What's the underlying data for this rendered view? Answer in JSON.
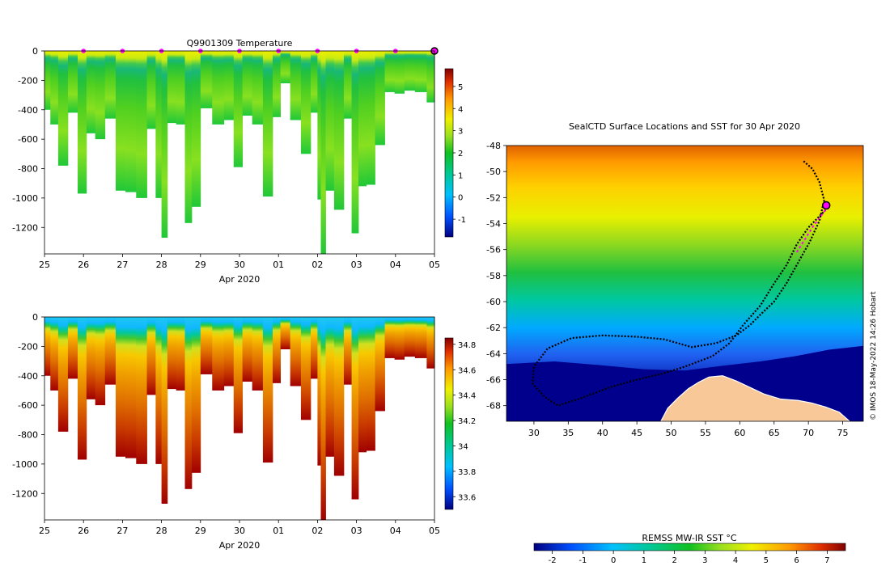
{
  "chart_data": [
    {
      "id": "temperature",
      "type": "heatmap",
      "title": "Q9901309  Temperature",
      "xlabel": "Apr 2020",
      "ylabel": "",
      "x_tick_labels": [
        "25",
        "26",
        "27",
        "28",
        "29",
        "30",
        "01",
        "02",
        "03",
        "04",
        "05"
      ],
      "y_tick_values": [
        0,
        -200,
        -400,
        -600,
        -800,
        -1000,
        -1200
      ],
      "ylim": [
        -1380,
        0
      ],
      "xlim": [
        25,
        35
      ],
      "colorbar_ticks": [
        5,
        4,
        3,
        2,
        1,
        0,
        -1
      ],
      "colorbar_range": [
        -1.8,
        5.8
      ],
      "profile_markers_day": [
        26,
        27,
        28,
        29,
        30,
        31,
        32,
        33,
        34
      ],
      "current_position_day": 35,
      "casts": [
        {
          "x": 25.05,
          "depth": 400
        },
        {
          "x": 25.25,
          "depth": 500
        },
        {
          "x": 25.45,
          "depth": 780
        },
        {
          "x": 25.75,
          "depth": 420
        },
        {
          "x": 25.95,
          "depth": 970
        },
        {
          "x": 26.2,
          "depth": 560
        },
        {
          "x": 26.4,
          "depth": 600
        },
        {
          "x": 26.7,
          "depth": 460
        },
        {
          "x": 26.95,
          "depth": 950
        },
        {
          "x": 27.2,
          "depth": 960
        },
        {
          "x": 27.5,
          "depth": 1000
        },
        {
          "x": 27.75,
          "depth": 530
        },
        {
          "x": 27.95,
          "depth": 1000
        },
        {
          "x": 28.05,
          "depth": 1270
        },
        {
          "x": 28.25,
          "depth": 490
        },
        {
          "x": 28.5,
          "depth": 500
        },
        {
          "x": 28.7,
          "depth": 1170
        },
        {
          "x": 28.85,
          "depth": 1060
        },
        {
          "x": 29.15,
          "depth": 390
        },
        {
          "x": 29.45,
          "depth": 500
        },
        {
          "x": 29.75,
          "depth": 470
        },
        {
          "x": 29.95,
          "depth": 790
        },
        {
          "x": 30.2,
          "depth": 440
        },
        {
          "x": 30.45,
          "depth": 500
        },
        {
          "x": 30.75,
          "depth": 990
        },
        {
          "x": 30.95,
          "depth": 450
        },
        {
          "x": 31.15,
          "depth": 220
        },
        {
          "x": 31.45,
          "depth": 470
        },
        {
          "x": 31.7,
          "depth": 700
        },
        {
          "x": 31.95,
          "depth": 420
        },
        {
          "x": 32.05,
          "depth": 1010
        },
        {
          "x": 32.12,
          "depth": 1380
        },
        {
          "x": 32.3,
          "depth": 950
        },
        {
          "x": 32.55,
          "depth": 1080
        },
        {
          "x": 32.8,
          "depth": 460
        },
        {
          "x": 32.95,
          "depth": 1240
        },
        {
          "x": 33.15,
          "depth": 920
        },
        {
          "x": 33.35,
          "depth": 910
        },
        {
          "x": 33.6,
          "depth": 640
        },
        {
          "x": 33.85,
          "depth": 280
        },
        {
          "x": 34.1,
          "depth": 290
        },
        {
          "x": 34.35,
          "depth": 270
        },
        {
          "x": 34.65,
          "depth": 280
        },
        {
          "x": 34.95,
          "depth": 350
        }
      ]
    },
    {
      "id": "salinity",
      "type": "heatmap",
      "title": "",
      "xlabel": "Apr 2020",
      "ylabel": "",
      "x_tick_labels": [
        "25",
        "26",
        "27",
        "28",
        "29",
        "30",
        "01",
        "02",
        "03",
        "04",
        "05"
      ],
      "y_tick_values": [
        0,
        -200,
        -400,
        -600,
        -800,
        -1000,
        -1200
      ],
      "ylim": [
        -1380,
        0
      ],
      "xlim": [
        25,
        35
      ],
      "colorbar_ticks": [
        34.8,
        34.6,
        34.4,
        34.2,
        34,
        33.8,
        33.6
      ],
      "colorbar_tick_labels": [
        "34.8",
        "34.6",
        "34.4",
        "34.2",
        "34",
        "33.8",
        "33.6"
      ],
      "colorbar_range": [
        33.5,
        34.85
      ]
    },
    {
      "id": "sst_map",
      "type": "heatmap",
      "title": "SealCTD Surface Locations and SST for 30 Apr 2020",
      "xlabel": "",
      "ylabel": "",
      "x_tick_values": [
        30,
        35,
        40,
        45,
        50,
        55,
        60,
        65,
        70,
        75
      ],
      "y_tick_values": [
        -48,
        -50,
        -52,
        -54,
        -56,
        -58,
        -60,
        -62,
        -64,
        -66,
        -68
      ],
      "xlim": [
        26,
        78
      ],
      "ylim": [
        -69.2,
        -48
      ],
      "colorbar_title": "REMSS MW-IR SST °C",
      "colorbar_ticks": [
        -2,
        -1,
        0,
        1,
        2,
        3,
        4,
        5,
        6,
        7
      ],
      "colorbar_range": [
        -2.6,
        7.6
      ],
      "credit": "© IMOS 18-May-2022 14:26 Hobart",
      "track": [
        [
          69.3,
          -49.2
        ],
        [
          70.6,
          -49.8
        ],
        [
          71.6,
          -50.8
        ],
        [
          72.3,
          -52.2
        ],
        [
          71.6,
          -53.8
        ],
        [
          70.2,
          -55.4
        ],
        [
          68.5,
          -57.0
        ],
        [
          66.8,
          -58.6
        ],
        [
          65.0,
          -60.0
        ],
        [
          63.0,
          -61.0
        ],
        [
          61.5,
          -61.8
        ],
        [
          59.5,
          -62.6
        ],
        [
          56.5,
          -63.2
        ],
        [
          53.0,
          -63.5
        ],
        [
          49.0,
          -62.9
        ],
        [
          45.0,
          -62.7
        ],
        [
          40.0,
          -62.6
        ],
        [
          35.5,
          -62.8
        ],
        [
          32.0,
          -63.6
        ],
        [
          30.0,
          -65.0
        ],
        [
          29.8,
          -66.3
        ],
        [
          31.5,
          -67.3
        ],
        [
          33.5,
          -68.0
        ],
        [
          37.0,
          -67.4
        ],
        [
          41.0,
          -66.6
        ],
        [
          45.0,
          -66.0
        ],
        [
          49.0,
          -65.5
        ],
        [
          52.0,
          -65.0
        ],
        [
          56.0,
          -64.2
        ],
        [
          58.5,
          -63.2
        ],
        [
          60.5,
          -61.8
        ],
        [
          63.0,
          -60.3
        ],
        [
          65.0,
          -58.6
        ],
        [
          66.8,
          -57.2
        ],
        [
          68.3,
          -55.6
        ],
        [
          70.0,
          -54.3
        ],
        [
          72.6,
          -52.9
        ]
      ],
      "magenta_track": [
        [
          68.3,
          -56.2
        ],
        [
          69.5,
          -55.2
        ],
        [
          70.7,
          -54.2
        ],
        [
          72.0,
          -53.3
        ],
        [
          72.8,
          -52.7
        ]
      ],
      "current_position": [
        72.6,
        -52.6
      ],
      "continent": [
        [
          48.5,
          -69.2
        ],
        [
          49.5,
          -68.2
        ],
        [
          51.0,
          -67.4
        ],
        [
          52.5,
          -66.7
        ],
        [
          54.0,
          -66.2
        ],
        [
          55.5,
          -65.8
        ],
        [
          57.5,
          -65.7
        ],
        [
          59.5,
          -66.1
        ],
        [
          61.5,
          -66.6
        ],
        [
          63.5,
          -67.1
        ],
        [
          66.0,
          -67.5
        ],
        [
          68.5,
          -67.6
        ],
        [
          70.5,
          -67.8
        ],
        [
          72.5,
          -68.1
        ],
        [
          74.5,
          -68.5
        ],
        [
          76.0,
          -69.2
        ]
      ]
    }
  ]
}
